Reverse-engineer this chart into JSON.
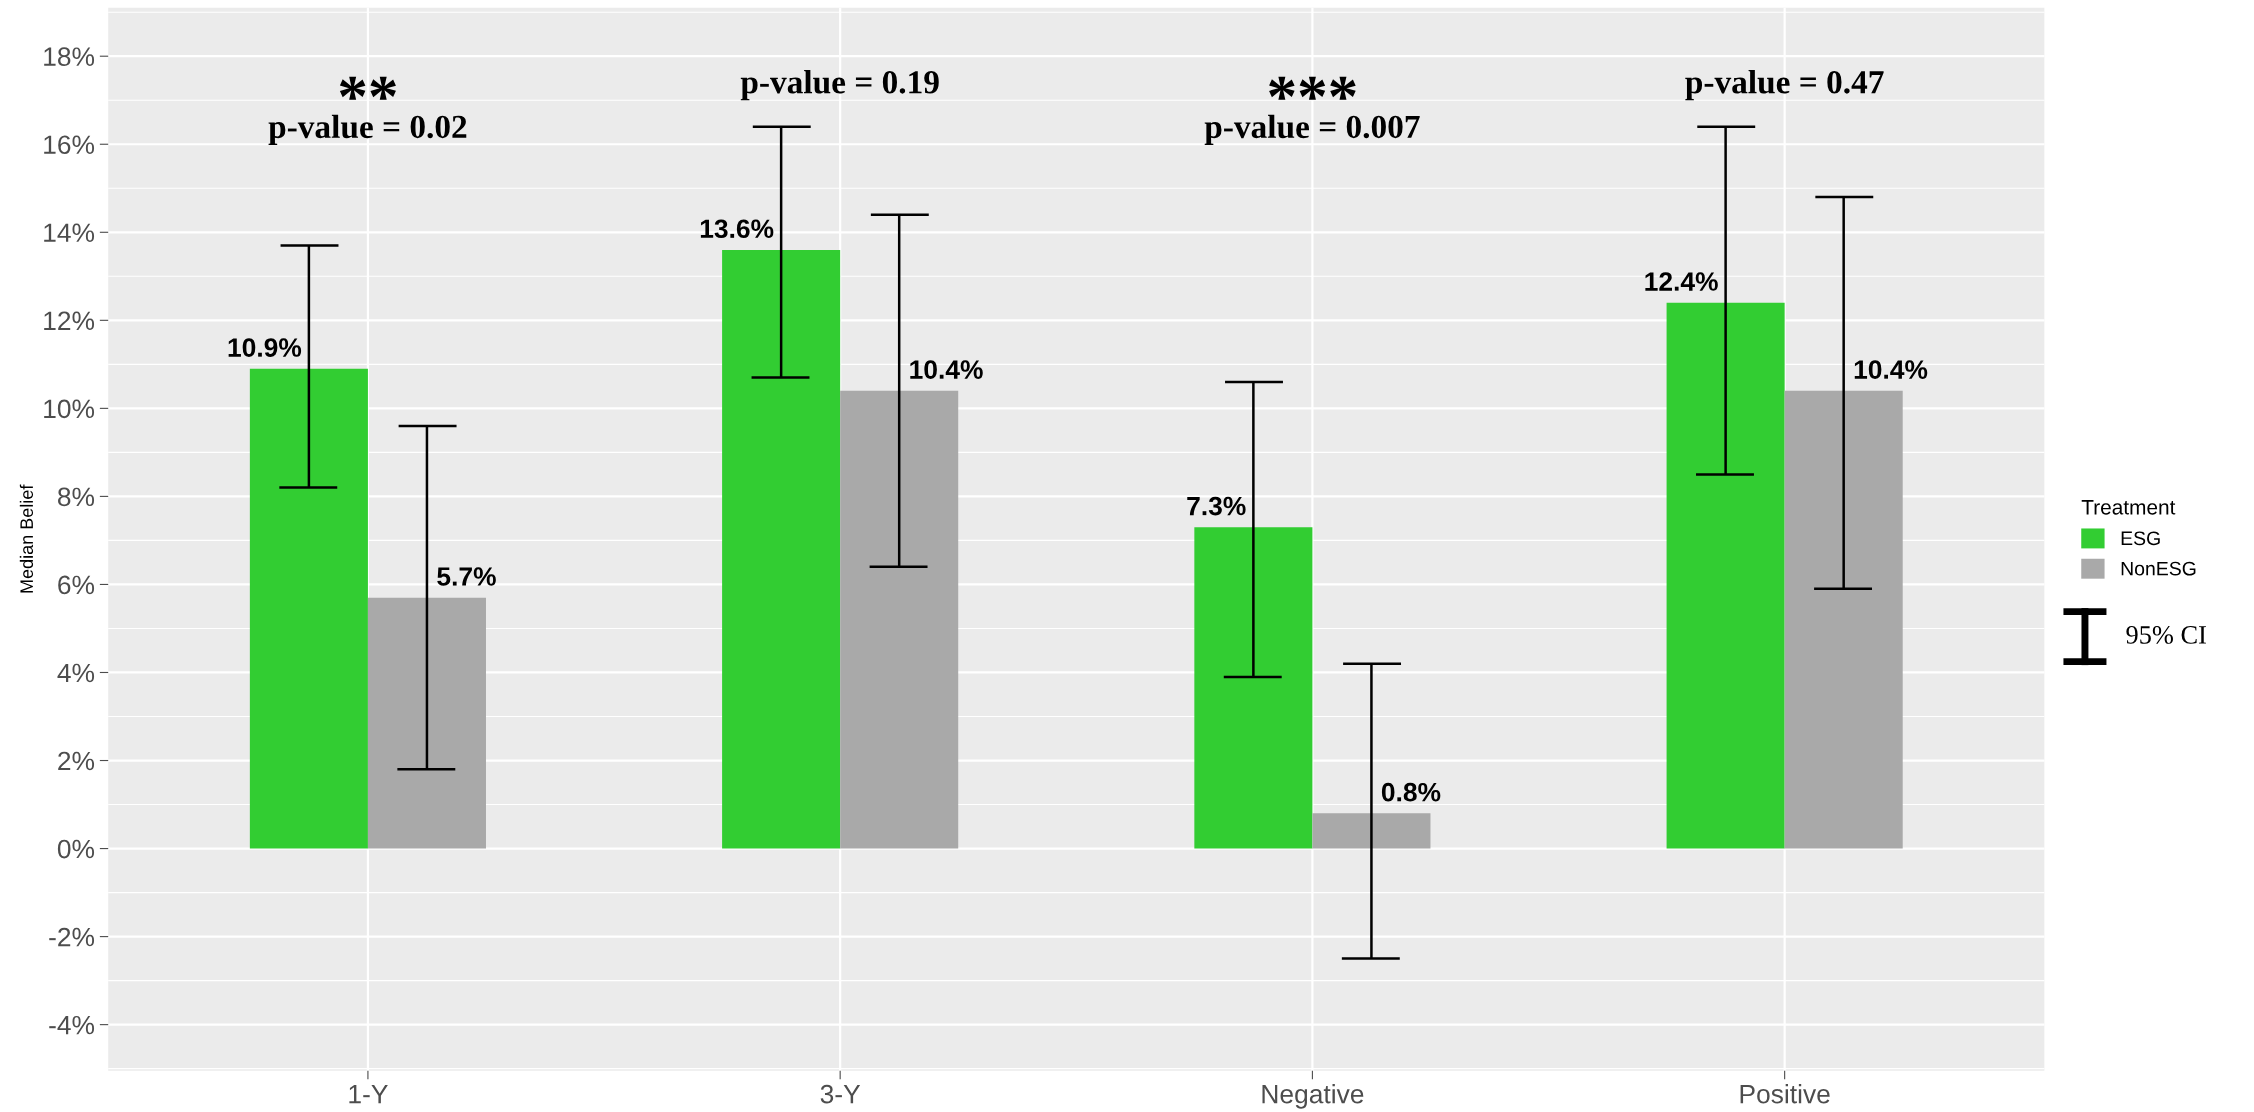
{
  "chart_data": {
    "type": "bar",
    "ylabel": "Median Belief",
    "legend_title": "Treatment",
    "categories": [
      "1-Y",
      "3-Y",
      "Negative",
      "Positive"
    ],
    "series": [
      {
        "name": "ESG",
        "color": "#32cd32",
        "values": [
          10.9,
          13.6,
          7.3,
          12.4
        ],
        "value_labels": [
          "10.9%",
          "13.6%",
          "7.3%",
          "12.4%"
        ],
        "errors": [
          [
            8.2,
            13.7
          ],
          [
            10.7,
            16.4
          ],
          [
            3.9,
            10.6
          ],
          [
            8.5,
            16.4
          ]
        ]
      },
      {
        "name": "NonESG",
        "color": "#a9a9a9",
        "values": [
          5.7,
          10.4,
          0.8,
          10.4
        ],
        "value_labels": [
          "5.7%",
          "10.4%",
          "0.8%",
          "10.4%"
        ],
        "errors": [
          [
            1.8,
            9.6
          ],
          [
            6.4,
            14.4
          ],
          [
            -2.5,
            4.2
          ],
          [
            5.9,
            14.8
          ]
        ]
      }
    ],
    "ylim": [
      -5.05,
      19.1
    ],
    "yticks": [
      {
        "value": -4,
        "label": "-4%"
      },
      {
        "value": -2,
        "label": "-2%"
      },
      {
        "value": 0,
        "label": "0%"
      },
      {
        "value": 2,
        "label": "2%"
      },
      {
        "value": 4,
        "label": "4%"
      },
      {
        "value": 6,
        "label": "6%"
      },
      {
        "value": 8,
        "label": "8%"
      },
      {
        "value": 10,
        "label": "10%"
      },
      {
        "value": 12,
        "label": "12%"
      },
      {
        "value": 14,
        "label": "14%"
      },
      {
        "value": 16,
        "label": "16%"
      },
      {
        "value": 18,
        "label": "18%"
      }
    ],
    "grid": true,
    "legend": "right",
    "annotations": [
      "**",
      "p-value = 0.02",
      "p-value = 0.19",
      "***",
      "p-value = 0.007",
      "p-value = 0.47",
      "95% CI"
    ]
  }
}
